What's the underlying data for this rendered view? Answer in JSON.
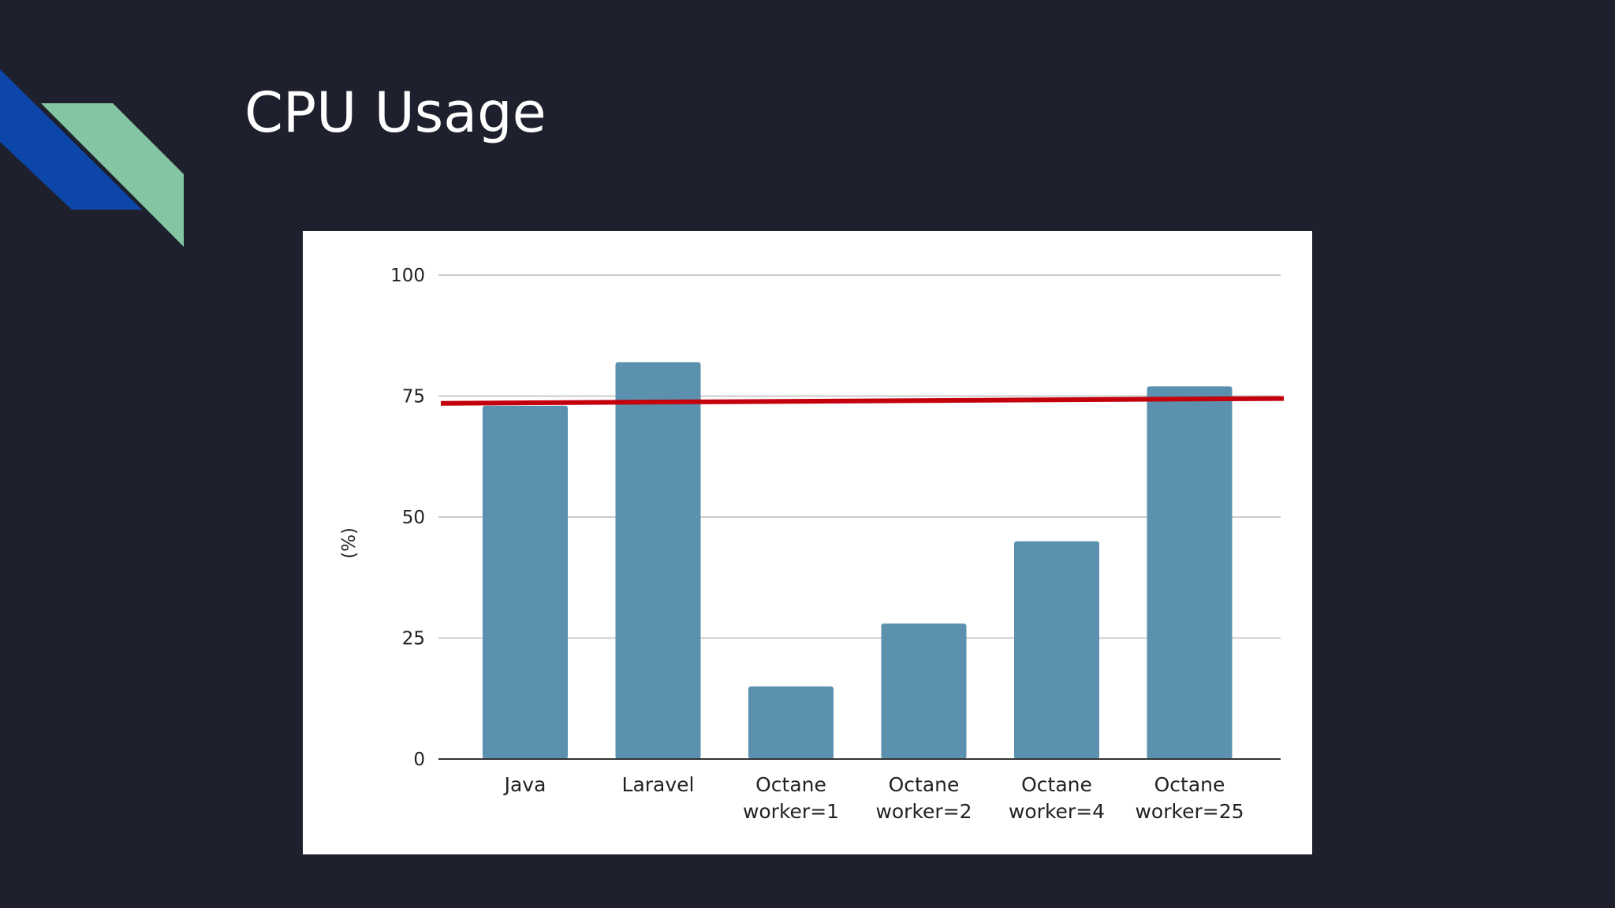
{
  "slide": {
    "title": "CPU Usage"
  },
  "colors": {
    "background": "#1e202d",
    "accent_blue": "#0b46a8",
    "accent_green": "#84c5a4",
    "bar": "#5b91ae",
    "reference_line": "#c4000d",
    "grid": "#cccccc"
  },
  "chart_data": {
    "type": "bar",
    "title": "",
    "xlabel": "",
    "ylabel": "(%)",
    "ylim": [
      0,
      100
    ],
    "yticks": [
      0,
      25,
      50,
      75,
      100
    ],
    "grid": true,
    "categories": [
      [
        "Java"
      ],
      [
        "Laravel"
      ],
      [
        "Octane",
        "worker=1"
      ],
      [
        "Octane",
        "worker=2"
      ],
      [
        "Octane",
        "worker=4"
      ],
      [
        "Octane",
        "worker=25"
      ]
    ],
    "values": [
      73,
      82,
      15,
      28,
      45,
      77
    ],
    "reference_line": {
      "y_start": 73.5,
      "y_end": 74.5
    }
  }
}
